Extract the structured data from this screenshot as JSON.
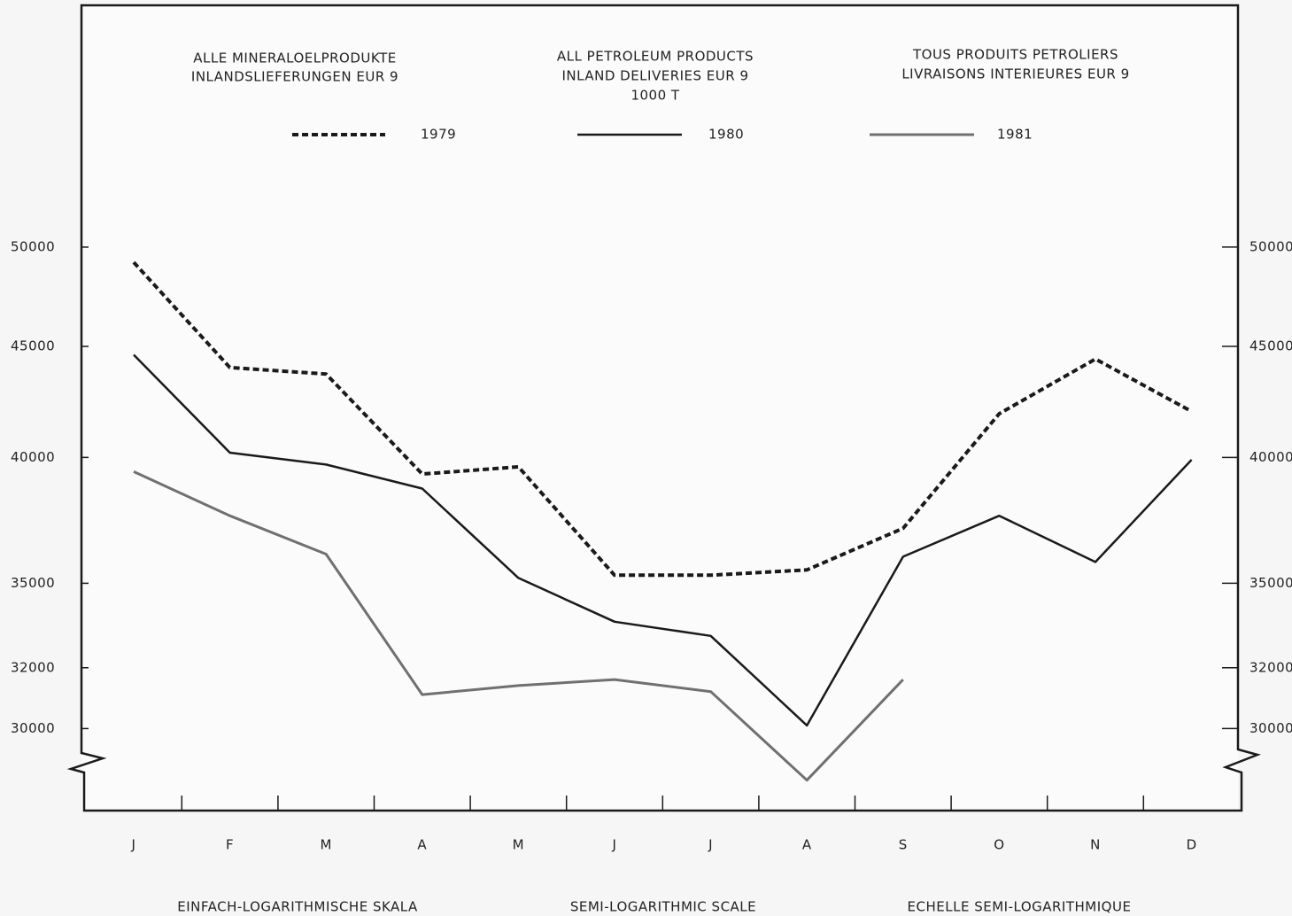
{
  "chart_data": {
    "type": "line",
    "headers": [
      [
        "ALLE MINERALOELPRODUKTE",
        "INLANDSLIEFERUNGEN EUR 9"
      ],
      [
        "ALL PETROLEUM PRODUCTS",
        "INLAND DELIVERIES EUR 9",
        "1000 T"
      ],
      [
        "TOUS PRODUITS PETROLIERS",
        "LIVRAISONS INTERIEURES EUR 9"
      ]
    ],
    "footers": [
      "EINFACH-LOGARITHMISCHE SKALA",
      "SEMI-LOGARITHMIC SCALE",
      "ECHELLE SEMI-LOGARITHMIQUE"
    ],
    "categories": [
      "J",
      "F",
      "M",
      "A",
      "M",
      "J",
      "J",
      "A",
      "S",
      "O",
      "N",
      "D"
    ],
    "series": [
      {
        "name": "1979",
        "color": "#1a1a1a",
        "dashed": true,
        "values": [
          49200,
          44000,
          43700,
          39300,
          39600,
          35300,
          35300,
          35500,
          37100,
          41900,
          44400,
          42000
        ]
      },
      {
        "name": "1980",
        "color": "#1a1a1a",
        "dashed": false,
        "values": [
          44600,
          40200,
          39700,
          38700,
          35200,
          33600,
          33100,
          30100,
          36000,
          37600,
          35800,
          39900
        ]
      },
      {
        "name": "1981",
        "color": "#707070",
        "dashed": false,
        "values": [
          39400,
          37600,
          36100,
          31100,
          31400,
          31600,
          31200,
          28400,
          31600,
          null,
          null,
          null
        ]
      }
    ],
    "yscale": "log",
    "ylim": [
      27500,
      64500
    ],
    "yticks": [
      30000,
      32000,
      35000,
      40000,
      45000,
      50000
    ],
    "y2lim": [
      27500,
      64500
    ],
    "y2ticks": [
      30000,
      32000,
      35000,
      40000,
      45000,
      50000
    ]
  }
}
